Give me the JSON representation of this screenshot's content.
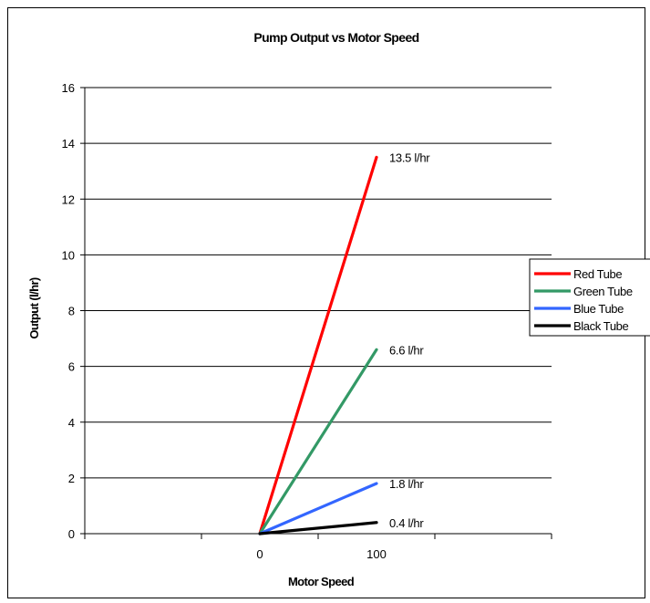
{
  "chart_data": {
    "type": "line",
    "title": "Pump Output vs Motor Speed",
    "xlabel": "Motor Speed",
    "ylabel": "Output (l/hr)",
    "x_ticks": [
      "",
      "0",
      "100",
      ""
    ],
    "ylim": [
      0,
      16
    ],
    "y_ticks": [
      0,
      2,
      4,
      6,
      8,
      10,
      12,
      14,
      16
    ],
    "grid": "horizontal",
    "legend": "right",
    "series": [
      {
        "name": "Red Tube",
        "color": "#ff0000",
        "x": [
          0,
          100
        ],
        "y": [
          0,
          13.5
        ],
        "end_label": "13.5 l/hr"
      },
      {
        "name": "Green Tube",
        "color": "#339966",
        "x": [
          0,
          100
        ],
        "y": [
          0,
          6.6
        ],
        "end_label": "6.6 l/hr"
      },
      {
        "name": "Blue Tube",
        "color": "#3366ff",
        "x": [
          0,
          100
        ],
        "y": [
          0,
          1.8
        ],
        "end_label": "1.8 l/hr"
      },
      {
        "name": "Black Tube",
        "color": "#000000",
        "x": [
          0,
          100
        ],
        "y": [
          0,
          0.4
        ],
        "end_label": "0.4 l/hr"
      }
    ]
  }
}
